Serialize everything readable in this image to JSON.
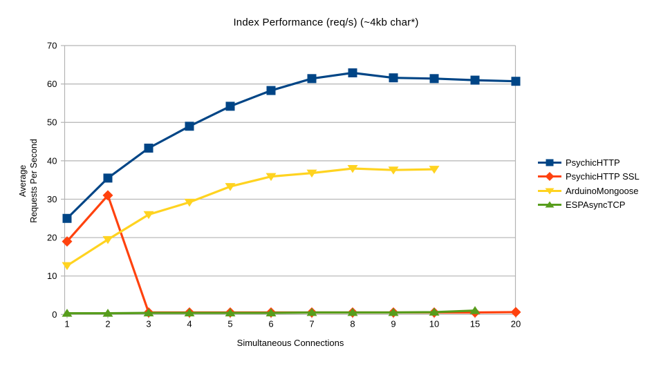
{
  "colors": {
    "background": "#ffffff",
    "grid": "#b3b3b3",
    "text": "#000000"
  },
  "chart_data": {
    "type": "line",
    "title": "Index Performance (req/s) (~4kb char*)",
    "xlabel": "Simultaneous Connections",
    "ylabel": "Average Requests Per Second",
    "ylabel_lines": [
      "Average",
      "Requests Per Second"
    ],
    "categories": [
      "1",
      "2",
      "3",
      "4",
      "5",
      "6",
      "7",
      "8",
      "9",
      "10",
      "15",
      "20"
    ],
    "x_axis_type": "categorical",
    "ylim": [
      0,
      70
    ],
    "y_ticks": [
      0,
      10,
      20,
      30,
      40,
      50,
      60,
      70
    ],
    "grid": true,
    "legend_position": "right",
    "series": [
      {
        "name": "PsychicHTTP",
        "color": "#004586",
        "marker": "square",
        "values": [
          25.0,
          35.5,
          43.3,
          49.0,
          54.2,
          58.3,
          61.4,
          62.9,
          61.6,
          61.4,
          61.0,
          60.7
        ]
      },
      {
        "name": "PsychicHTTP SSL",
        "color": "#ff420e",
        "marker": "diamond",
        "values": [
          19.0,
          31.0,
          0.5,
          0.5,
          0.5,
          0.5,
          0.5,
          0.5,
          0.5,
          0.5,
          0.5,
          0.6
        ]
      },
      {
        "name": "ArduinoMongoose",
        "color": "#ffd320",
        "marker": "triangle-down",
        "values": [
          12.7,
          19.5,
          26.0,
          29.2,
          33.3,
          35.9,
          36.8,
          38.0,
          37.6,
          37.8,
          null,
          null
        ]
      },
      {
        "name": "ESPAsyncTCP",
        "color": "#579d1c",
        "marker": "triangle-up",
        "values": [
          0.3,
          0.3,
          0.4,
          0.4,
          0.4,
          0.4,
          0.5,
          0.5,
          0.5,
          0.6,
          1.0,
          null
        ]
      }
    ]
  }
}
